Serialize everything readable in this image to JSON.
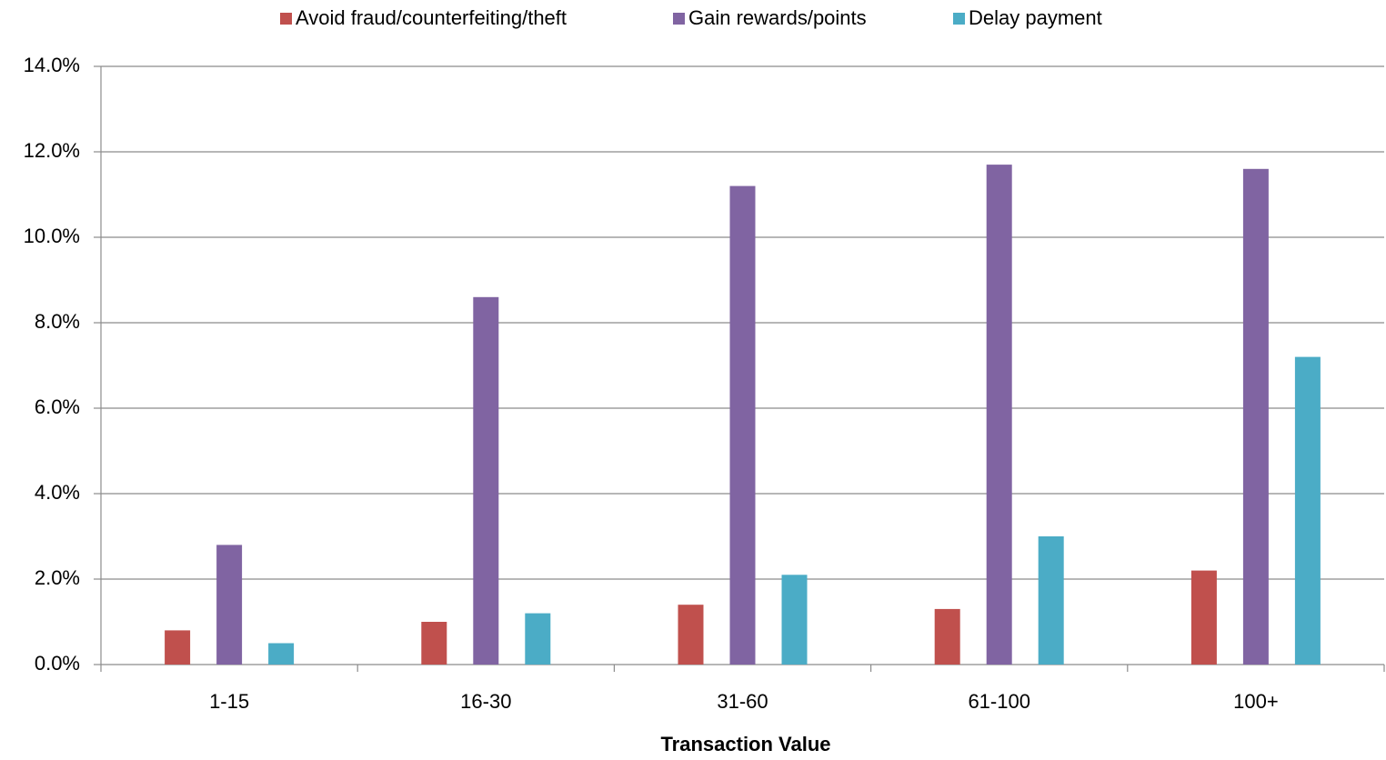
{
  "chart_data": {
    "type": "bar",
    "x_label": "Transaction Value",
    "categories": [
      "1-15",
      "16-30",
      "31-60",
      "61-100",
      "100+"
    ],
    "series": [
      {
        "name": "Avoid fraud/counterfeiting/theft",
        "color": "#c0504d",
        "values": [
          0.8,
          1.0,
          1.4,
          1.3,
          2.2
        ]
      },
      {
        "name": "Gain rewards/points",
        "color": "#8064a2",
        "values": [
          2.8,
          8.6,
          11.2,
          11.7,
          11.6
        ]
      },
      {
        "name": "Delay payment",
        "color": "#4bacc6",
        "values": [
          0.5,
          1.2,
          2.1,
          3.0,
          7.2
        ]
      }
    ],
    "ylim": [
      0,
      14
    ],
    "yticks": [
      {
        "value": 0,
        "label": "0.0%"
      },
      {
        "value": 2,
        "label": "2.0%"
      },
      {
        "value": 4,
        "label": "4.0%"
      },
      {
        "value": 6,
        "label": "6.0%"
      },
      {
        "value": 8,
        "label": "8.0%"
      },
      {
        "value": 10,
        "label": "10.0%"
      },
      {
        "value": 12,
        "label": "12.0%"
      },
      {
        "value": 14,
        "label": "14.0%"
      }
    ],
    "grid": true,
    "legend": "top"
  }
}
